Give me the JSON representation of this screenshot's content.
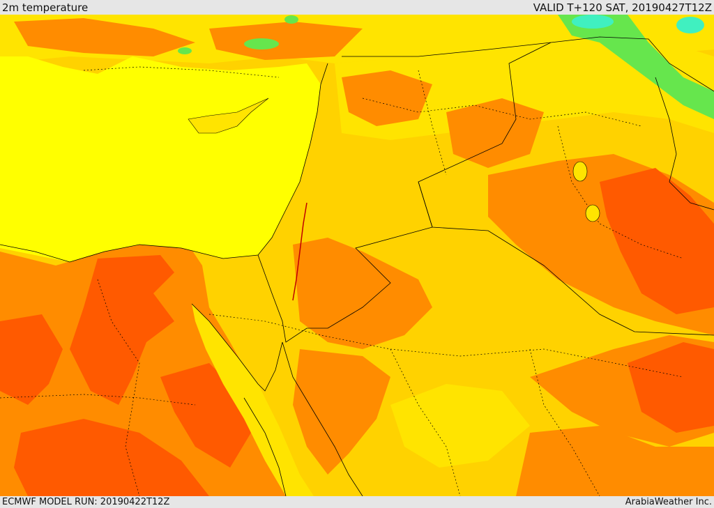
{
  "header": {
    "title": "2m temperature",
    "valid_time": "VALID T+120 SAT, 20190427T12Z"
  },
  "footer": {
    "model_run": "ECMWF MODEL RUN: 20190422T12Z",
    "credit": "ArabiaWeather Inc."
  },
  "colors": {
    "sea_yellow": "#ffff00",
    "light_yellow": "#ffe400",
    "gold": "#ffd200",
    "orange": "#ff8c00",
    "dark_orange": "#ff5a00",
    "green": "#66e64d",
    "cyan": "#40f0c0",
    "border_line": "#000000"
  }
}
